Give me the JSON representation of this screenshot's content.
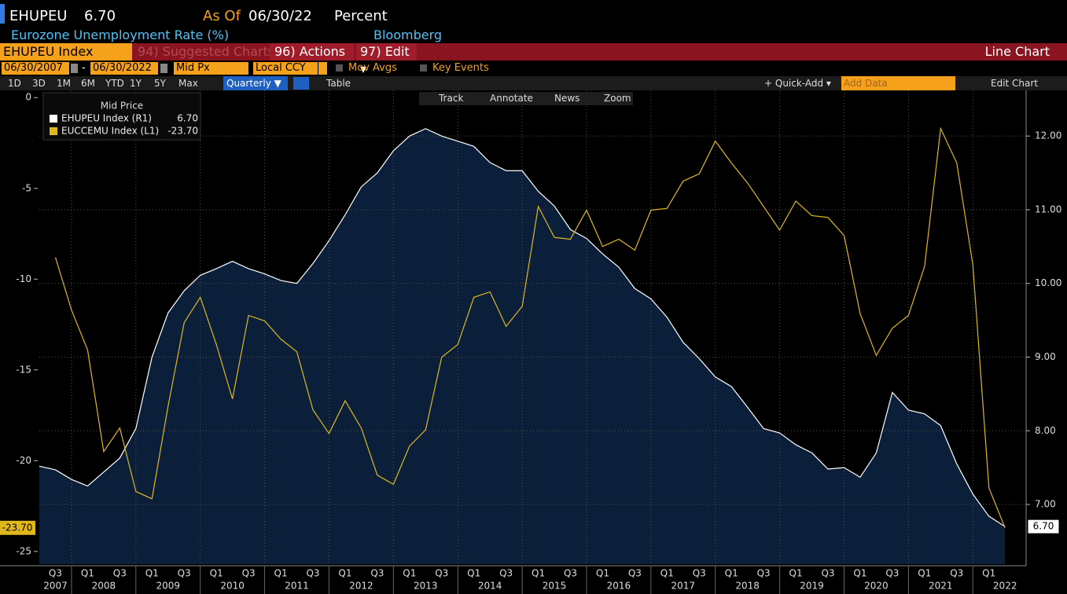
{
  "header": {
    "ticker": "EHUPEU",
    "last": "6.70",
    "as_of_label": "As Of",
    "as_of": "06/30/22",
    "units": "Percent",
    "description": "Eurozone Unemployment Rate (%)",
    "source": "Bloomberg"
  },
  "toolbar": {
    "security": "EHUPEU Index",
    "suggested": "94) Suggested Charts",
    "actions": "96) Actions ▾",
    "edit": "97) Edit ▾",
    "view": "Line Chart"
  },
  "settings": {
    "start": "06/30/2007",
    "dash": "-",
    "end": "06/30/2022",
    "field": "Mid Px",
    "currency": "Local CCY",
    "mov_avgs": "Mov Avgs",
    "key_events": "Key Events"
  },
  "ranges": [
    "1D",
    "3D",
    "1M",
    "6M",
    "YTD",
    "1Y",
    "5Y",
    "Max"
  ],
  "frequency": "Quarterly ▼",
  "table": "Table",
  "quick_add": "+ Quick-Add ▾",
  "add_data": "Add Data",
  "edit_chart": "Edit Chart",
  "chart_tools": [
    "Track",
    "Annotate",
    "News",
    "Zoom"
  ],
  "chart_data": {
    "type": "line",
    "legend_title": "Mid Price",
    "categories": [
      null,
      "Q3",
      null,
      "Q1",
      null,
      "Q3",
      null,
      "Q1",
      null,
      "Q3",
      null,
      "Q1",
      null,
      "Q3",
      null,
      "Q1",
      null,
      "Q3",
      null,
      "Q1",
      null,
      "Q3",
      null,
      "Q1",
      null,
      "Q3",
      null,
      "Q1",
      null,
      "Q3",
      null,
      "Q1",
      null,
      "Q3",
      null,
      "Q1",
      null,
      "Q3",
      null,
      "Q1",
      null,
      "Q3",
      null,
      "Q1",
      null,
      "Q3",
      null,
      "Q1",
      null,
      "Q3",
      null,
      "Q1",
      null,
      "Q3",
      null,
      "Q1",
      null,
      "Q3",
      null,
      "Q1",
      null
    ],
    "years": [
      "2007",
      "2008",
      "2009",
      "2010",
      "2011",
      "2012",
      "2013",
      "2014",
      "2015",
      "2016",
      "2017",
      "2018",
      "2019",
      "2020",
      "2021",
      "2022"
    ],
    "series": [
      {
        "name": "EHUPEU Index (R1)",
        "legend_value": "6.70",
        "color": "#ffffff",
        "fill": "#0b1f3a",
        "axis": "y2",
        "values": [
          7.52,
          7.47,
          7.34,
          7.25,
          7.44,
          7.63,
          8.03,
          9.0,
          9.6,
          9.9,
          10.11,
          10.2,
          10.3,
          10.2,
          10.13,
          10.04,
          10.0,
          10.27,
          10.58,
          10.93,
          11.31,
          11.5,
          11.8,
          12.0,
          12.1,
          12.0,
          11.93,
          11.86,
          11.64,
          11.53,
          11.53,
          11.25,
          11.05,
          10.73,
          10.61,
          10.4,
          10.22,
          9.93,
          9.79,
          9.54,
          9.2,
          8.98,
          8.73,
          8.6,
          8.32,
          8.03,
          7.97,
          7.81,
          7.7,
          7.48,
          7.5,
          7.37,
          7.7,
          8.52,
          8.28,
          8.23,
          8.07,
          7.55,
          7.14,
          6.84,
          6.7
        ]
      },
      {
        "name": "EUCCEMU Index (L1)",
        "legend_value": "-23.70",
        "color": "#e0b81c",
        "axis": "y",
        "values": [
          null,
          -8.8,
          -11.7,
          -13.9,
          -19.5,
          -18.2,
          -21.7,
          -22.1,
          -17.0,
          -12.4,
          -11.0,
          -13.6,
          -16.6,
          -12.0,
          -12.3,
          -13.3,
          -14.0,
          -17.2,
          -18.5,
          -16.7,
          -18.2,
          -20.8,
          -21.3,
          -19.2,
          -18.3,
          -14.3,
          -13.6,
          -11.0,
          -10.7,
          -12.6,
          -11.5,
          -6.0,
          -7.7,
          -7.8,
          -6.2,
          -8.2,
          -7.8,
          -8.4,
          -6.2,
          -6.1,
          -4.6,
          -4.2,
          -2.4,
          -3.6,
          -4.7,
          -6.0,
          -7.3,
          -5.7,
          -6.5,
          -6.6,
          -7.6,
          -11.9,
          -14.2,
          -12.7,
          -12.0,
          -9.3,
          -1.7,
          -3.6,
          -9.2,
          -21.5,
          -23.7
        ]
      }
    ],
    "ylim": [
      -25.7,
      0.4
    ],
    "yticks": [
      0,
      -5,
      -10,
      -15,
      -20,
      -25
    ],
    "y2lim": [
      6.19,
      12.62
    ],
    "y2ticks": [
      {
        "value": 7,
        "label": "7.00"
      },
      {
        "value": 8,
        "label": "8.00"
      },
      {
        "value": 9,
        "label": "9.00"
      },
      {
        "value": 10,
        "label": "10.00"
      },
      {
        "value": 11,
        "label": "11.00"
      },
      {
        "value": 12,
        "label": "12.00"
      }
    ],
    "grid": true
  }
}
